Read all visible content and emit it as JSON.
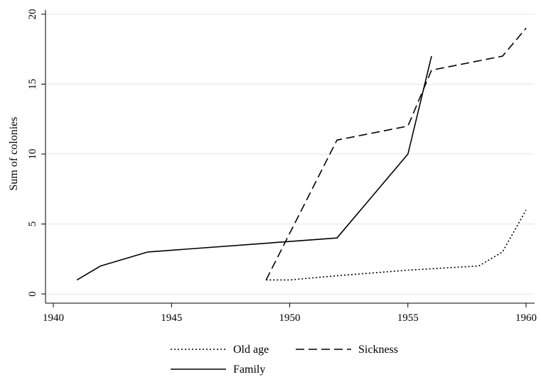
{
  "chart_data": {
    "type": "line",
    "title": "",
    "xlabel": "",
    "ylabel": "Sum of colonies",
    "xlim": [
      1940,
      1960
    ],
    "ylim": [
      0,
      20
    ],
    "x_ticks": [
      1940,
      1945,
      1950,
      1955,
      1960
    ],
    "y_ticks": [
      0,
      5,
      10,
      15,
      20
    ],
    "grid": "horizontal",
    "legend_position": "bottom",
    "series": [
      {
        "name": "Old age",
        "style": "dotted",
        "x": [
          1949,
          1950,
          1952,
          1955,
          1958,
          1959,
          1960
        ],
        "y": [
          1,
          1,
          1.3,
          1.7,
          2,
          3,
          6
        ]
      },
      {
        "name": "Sickness",
        "style": "dashed",
        "x": [
          1949,
          1952,
          1955,
          1956,
          1959,
          1960
        ],
        "y": [
          1,
          11,
          12,
          16,
          17,
          19
        ]
      },
      {
        "name": "Family",
        "style": "solid",
        "x": [
          1941,
          1942,
          1944,
          1952,
          1955,
          1956
        ],
        "y": [
          1,
          2,
          3,
          4,
          10,
          17
        ]
      }
    ]
  }
}
